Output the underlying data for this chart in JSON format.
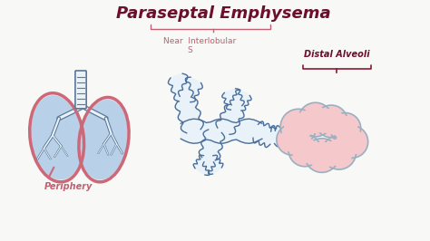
{
  "title": "Paraseptal Emphysema",
  "title_color": "#6b0f2b",
  "title_fontsize": 13,
  "subtitle_near": "Near  Interlobular",
  "subtitle_s": "S",
  "subtitle_color": "#c06070",
  "subtitle_fontsize": 6.5,
  "periphery_label": "Periphery",
  "periphery_color": "#c06070",
  "distal_label": "Distal Alveoli",
  "distal_color": "#6b0f2b",
  "background_color": "#f8f8f6",
  "lung_fill": "#b8d0e8",
  "lung_outline": "#cc6878",
  "bronchi_fill": "#ddeaf5",
  "bronchi_outline": "#4a6e9a",
  "alveoli_fill": "#f5c8cc",
  "alveoli_outline": "#9ab0c0",
  "trachea_fill": "#e8f2f8",
  "trachea_outline": "#5a7898",
  "bracket_color": "#8b1a2e"
}
